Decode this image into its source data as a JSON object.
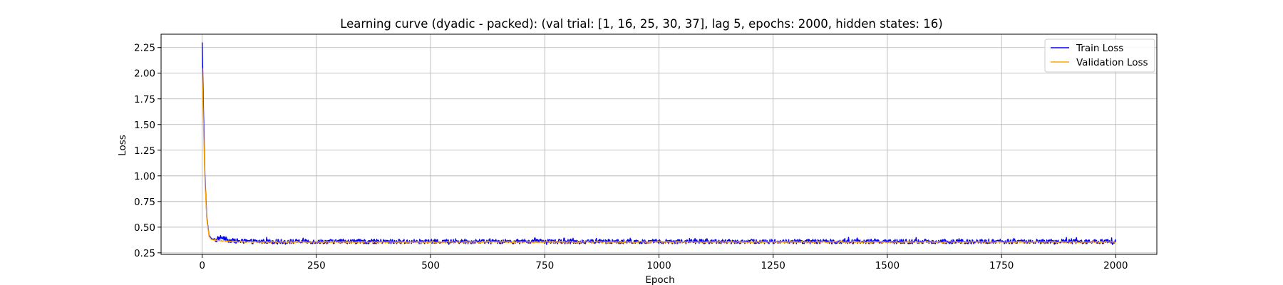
{
  "chart_data": {
    "type": "line",
    "title": "Learning curve (dyadic - packed): (val trial: [1, 16, 25, 30, 37], lag 5, epochs: 2000, hidden states: 16)",
    "xlabel": "Epoch",
    "ylabel": "Loss",
    "xlim": [
      -90,
      2090
    ],
    "ylim": [
      0.235,
      2.38
    ],
    "xticks": [
      0,
      250,
      500,
      750,
      1000,
      1250,
      1500,
      1750,
      2000
    ],
    "xtick_labels": [
      "0",
      "250",
      "500",
      "750",
      "1000",
      "1250",
      "1500",
      "1750",
      "2000"
    ],
    "yticks": [
      0.25,
      0.5,
      0.75,
      1.0,
      1.25,
      1.5,
      1.75,
      2.0,
      2.25
    ],
    "ytick_labels": [
      "0.25",
      "0.50",
      "0.75",
      "1.00",
      "1.25",
      "1.50",
      "1.75",
      "2.00",
      "2.25"
    ],
    "grid": true,
    "legend_position": "top-right",
    "epochs": 2000,
    "series": [
      {
        "name": "Train Loss",
        "color": "#0000ff",
        "key_points": [
          [
            0,
            2.3
          ],
          [
            3,
            1.6
          ],
          [
            6,
            1.0
          ],
          [
            10,
            0.6
          ],
          [
            15,
            0.42
          ],
          [
            20,
            0.39
          ],
          [
            30,
            0.37
          ],
          [
            40,
            0.4
          ],
          [
            60,
            0.37
          ],
          [
            100,
            0.36
          ],
          [
            2000,
            0.36
          ]
        ],
        "steady_value": 0.36,
        "noise_amplitude": 0.022
      },
      {
        "name": "Validation Loss",
        "color": "#ffa500",
        "key_points": [
          [
            0,
            2.05
          ],
          [
            3,
            1.45
          ],
          [
            6,
            0.95
          ],
          [
            10,
            0.58
          ],
          [
            15,
            0.41
          ],
          [
            20,
            0.38
          ],
          [
            30,
            0.37
          ],
          [
            60,
            0.36
          ],
          [
            100,
            0.355
          ],
          [
            2000,
            0.355
          ]
        ],
        "steady_value": 0.355,
        "noise_amplitude": 0.006
      }
    ]
  }
}
